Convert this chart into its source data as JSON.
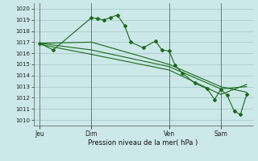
{
  "title": "Pression niveau de la mer( hPa )",
  "background_color": "#cce8e8",
  "grid_color": "#aacccc",
  "line_color": "#1a6b1a",
  "ylim": [
    1009.5,
    1020.5
  ],
  "yticks": [
    1010,
    1011,
    1012,
    1013,
    1014,
    1015,
    1016,
    1017,
    1018,
    1019,
    1020
  ],
  "day_labels": [
    "Jeu",
    "Dim",
    "Ven",
    "Sam"
  ],
  "day_positions": [
    0.0,
    0.25,
    0.625,
    0.875
  ],
  "xlim": [
    -0.03,
    1.03
  ],
  "series1_x": [
    0.0,
    0.065,
    0.25,
    0.28,
    0.31,
    0.34,
    0.375,
    0.41,
    0.44,
    0.5,
    0.56,
    0.59,
    0.625,
    0.655,
    0.69,
    0.75,
    0.81,
    0.845,
    0.875,
    0.905,
    0.94,
    0.97,
    1.0
  ],
  "series1_y": [
    1016.9,
    1016.3,
    1019.2,
    1019.1,
    1019.0,
    1019.2,
    1019.45,
    1018.5,
    1017.0,
    1016.5,
    1017.1,
    1016.3,
    1016.2,
    1014.9,
    1014.2,
    1013.3,
    1012.8,
    1011.85,
    1012.75,
    1012.25,
    1010.8,
    1010.5,
    1012.3
  ],
  "series2_x": [
    0.0,
    0.25,
    0.625,
    0.875,
    1.0
  ],
  "series2_y": [
    1016.9,
    1017.0,
    1015.0,
    1013.0,
    1012.5
  ],
  "series3_x": [
    0.0,
    0.25,
    0.625,
    0.875,
    1.0
  ],
  "series3_y": [
    1016.9,
    1016.3,
    1014.8,
    1012.8,
    1013.0
  ],
  "series4_x": [
    0.0,
    0.25,
    0.625,
    0.875,
    1.0
  ],
  "series4_y": [
    1016.8,
    1015.9,
    1014.5,
    1012.3,
    1013.2
  ],
  "figsize": [
    3.2,
    2.0
  ],
  "dpi": 100
}
